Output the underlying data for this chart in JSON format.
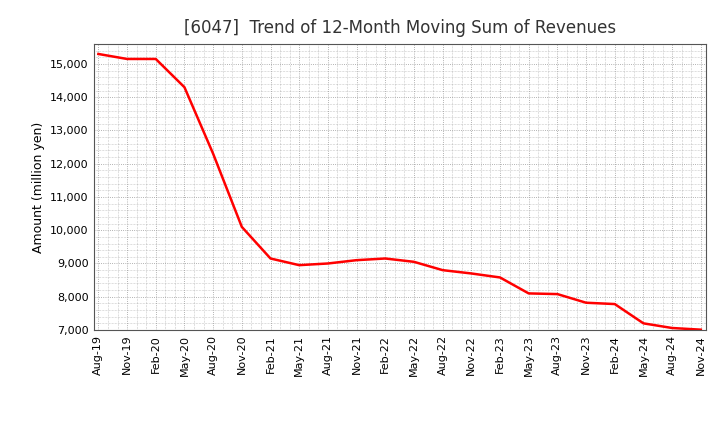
{
  "title": "[6047]  Trend of 12-Month Moving Sum of Revenues",
  "ylabel": "Amount (million yen)",
  "line_color": "#FF0000",
  "line_width": 1.8,
  "background_color": "#FFFFFF",
  "grid_color": "#999999",
  "ylim": [
    7000,
    15600
  ],
  "yticks": [
    7000,
    8000,
    9000,
    10000,
    11000,
    12000,
    13000,
    14000,
    15000
  ],
  "x_labels": [
    "Aug-19",
    "Nov-19",
    "Feb-20",
    "May-20",
    "Aug-20",
    "Nov-20",
    "Feb-21",
    "May-21",
    "Aug-21",
    "Nov-21",
    "Feb-22",
    "May-22",
    "Aug-22",
    "Nov-22",
    "Feb-23",
    "May-23",
    "Aug-23",
    "Nov-23",
    "Feb-24",
    "May-24",
    "Aug-24",
    "Nov-24"
  ],
  "x_values": [
    0,
    3,
    6,
    9,
    12,
    15,
    18,
    21,
    24,
    27,
    30,
    33,
    36,
    39,
    42,
    45,
    48,
    51,
    54,
    57,
    60,
    63
  ],
  "y_values": [
    15300,
    15150,
    15150,
    14300,
    12300,
    10100,
    9150,
    8950,
    9000,
    9100,
    9150,
    9050,
    8800,
    8700,
    8580,
    8100,
    8080,
    7820,
    7780,
    7200,
    7060,
    7010
  ],
  "title_fontsize": 12,
  "ylabel_fontsize": 9,
  "tick_fontsize": 8
}
